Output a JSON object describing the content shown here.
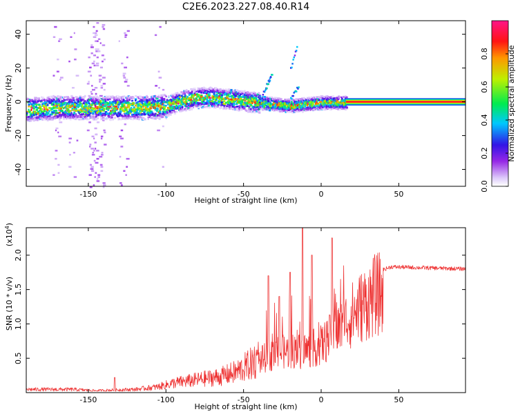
{
  "title": "C2E6.2023.227.08.40.R14",
  "chart_data": [
    {
      "type": "heatmap",
      "xlabel": "Height of straight line (km)",
      "ylabel": "Frequency (Hz)",
      "xlim": [
        -190,
        93
      ],
      "ylim": [
        -50,
        48
      ],
      "xticks": [
        -150,
        -100,
        -50,
        0,
        50
      ],
      "yticks": [
        -40,
        -20,
        0,
        20,
        40
      ],
      "colorbar": {
        "label": "Normalized spectral amplitude",
        "range": [
          0,
          1
        ],
        "ticks": [
          "0.0",
          "0.2",
          "0.4",
          "0.6",
          "0.8"
        ],
        "tick_values": [
          0,
          0.2,
          0.4,
          0.6,
          0.8
        ]
      },
      "ridge": [
        {
          "x": -190,
          "y": -4
        },
        {
          "x": -170,
          "y": -3
        },
        {
          "x": -150,
          "y": -3
        },
        {
          "x": -130,
          "y": -3
        },
        {
          "x": -110,
          "y": -3
        },
        {
          "x": -100,
          "y": -2
        },
        {
          "x": -90,
          "y": 1
        },
        {
          "x": -80,
          "y": 3
        },
        {
          "x": -70,
          "y": 3
        },
        {
          "x": -60,
          "y": 2
        },
        {
          "x": -50,
          "y": 1
        },
        {
          "x": -40,
          "y": 0
        },
        {
          "x": -30,
          "y": -1
        },
        {
          "x": -20,
          "y": -2
        },
        {
          "x": -10,
          "y": -1
        },
        {
          "x": 0,
          "y": 0
        },
        {
          "x": 10,
          "y": 0
        },
        {
          "x": 20,
          "y": 0
        },
        {
          "x": 93,
          "y": 0
        }
      ],
      "steady_band": {
        "x_start": 16,
        "x_end": 93,
        "y": 0,
        "amplitude": 0.92
      }
    },
    {
      "type": "line",
      "xlabel": "Height of straight line (km)",
      "ylabel": "SNR (10 * v/v)",
      "scale_note": "(x10",
      "scale_exponent": "4",
      "scale_close": ")",
      "xlim": [
        -190,
        93
      ],
      "ylim": [
        0,
        24000
      ],
      "xticks": [
        -150,
        -100,
        -50,
        0,
        50
      ],
      "yticks": [
        5000,
        10000,
        15000,
        20000
      ],
      "ytick_labels": [
        "0.5",
        "1.0",
        "1.5",
        "2.0"
      ],
      "color": "#ee3333",
      "envelope": [
        {
          "x": -190,
          "y": 500
        },
        {
          "x": -160,
          "y": 500
        },
        {
          "x": -145,
          "y": 300
        },
        {
          "x": -135,
          "y": 400
        },
        {
          "x": -120,
          "y": 500
        },
        {
          "x": -105,
          "y": 900
        },
        {
          "x": -95,
          "y": 1500
        },
        {
          "x": -80,
          "y": 2000
        },
        {
          "x": -65,
          "y": 2500
        },
        {
          "x": -55,
          "y": 3200
        },
        {
          "x": -45,
          "y": 4500
        },
        {
          "x": -38,
          "y": 6000
        },
        {
          "x": -30,
          "y": 7000
        },
        {
          "x": -20,
          "y": 7500
        },
        {
          "x": -10,
          "y": 7500
        },
        {
          "x": 0,
          "y": 8500
        },
        {
          "x": 10,
          "y": 11000
        },
        {
          "x": 20,
          "y": 14000
        },
        {
          "x": 28,
          "y": 16000
        },
        {
          "x": 35,
          "y": 17500
        },
        {
          "x": 45,
          "y": 18300
        },
        {
          "x": 93,
          "y": 18000
        }
      ],
      "spikes": [
        {
          "x": -133,
          "y": 2200
        },
        {
          "x": -34,
          "y": 17000
        },
        {
          "x": -27,
          "y": 14000
        },
        {
          "x": -20,
          "y": 17500
        },
        {
          "x": -12,
          "y": 24000
        },
        {
          "x": -6,
          "y": 20000
        },
        {
          "x": 7,
          "y": 22500
        }
      ]
    }
  ]
}
